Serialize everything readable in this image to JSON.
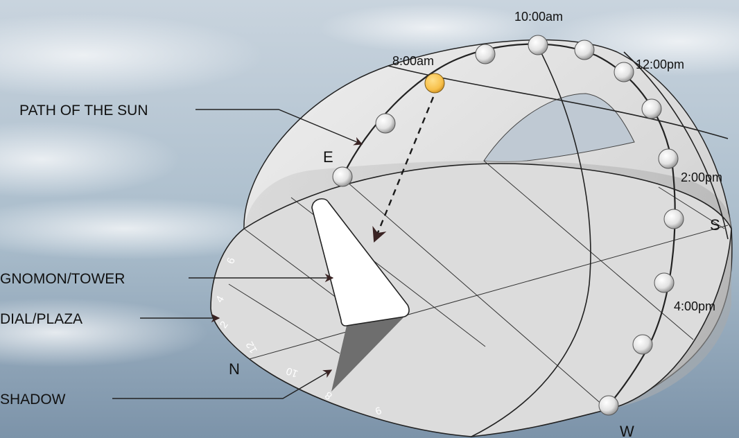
{
  "callouts": {
    "path_of_sun": "PATH OF THE SUN",
    "gnomon": "GNOMON/TOWER",
    "dial": "DIAL/PLAZA",
    "shadow": "SHADOW"
  },
  "times": {
    "t800": "8:00am",
    "t1000": "10:00am",
    "t1200": "12:00pm",
    "t200": "2:00pm",
    "t400": "4:00pm"
  },
  "directions": {
    "east": "E",
    "south": "S",
    "west": "W",
    "north": "N"
  },
  "hour_marks": {
    "h6a": "6",
    "h4": "4",
    "h2": "2",
    "h12": "12",
    "h10": "10",
    "h8": "8",
    "h6b": "6"
  },
  "colors": {
    "sky_top": "#c7d3dd",
    "sky_bottom": "#7f97ad",
    "dome": "#d6d6d6",
    "dial": "#dcdcdc",
    "sun_current": "#f7c04a",
    "sun_other": "#e9e9e9",
    "shadow": "#6e6e6e",
    "gnomon": "#ffffff"
  }
}
